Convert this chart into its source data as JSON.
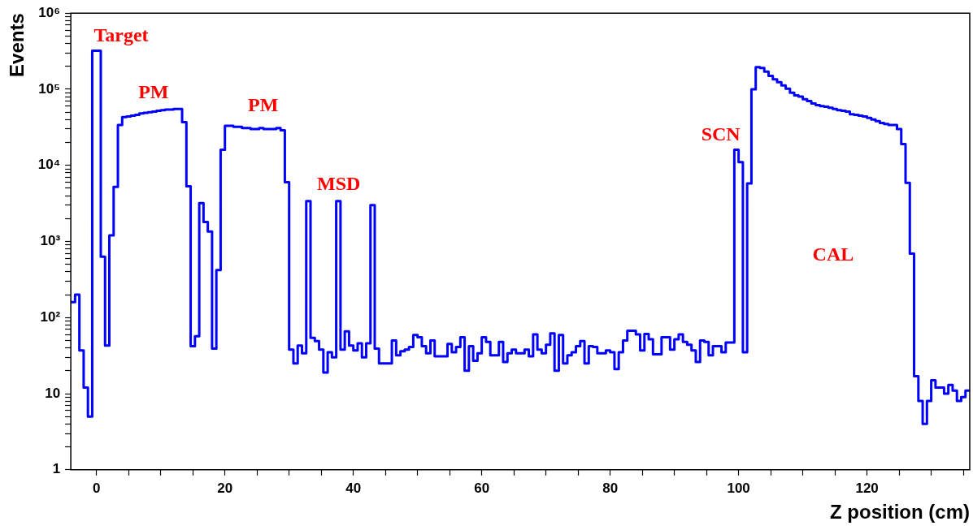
{
  "chart_data": {
    "type": "histogram",
    "xlabel": "Z position (cm)",
    "ylabel": "Events",
    "color": "#0000ff",
    "log": "y",
    "xlim": [
      -4,
      136
    ],
    "ylim": [
      1,
      1000000
    ],
    "xticks": [
      0,
      {
        "value": 5,
        "label": null
      },
      {
        "value": 10,
        "label": null
      },
      {
        "value": 15,
        "label": null
      },
      20,
      {
        "value": 25,
        "label": null
      },
      {
        "value": 30,
        "label": null
      },
      {
        "value": 35,
        "label": null
      },
      40,
      {
        "value": 45,
        "label": null
      },
      {
        "value": 50,
        "label": null
      },
      {
        "value": 55,
        "label": null
      },
      60,
      {
        "value": 65,
        "label": null
      },
      {
        "value": 70,
        "label": null
      },
      {
        "value": 75,
        "label": null
      },
      80,
      {
        "value": 85,
        "label": null
      },
      {
        "value": 90,
        "label": null
      },
      {
        "value": 95,
        "label": null
      },
      100,
      {
        "value": 105,
        "label": null
      },
      {
        "value": 110,
        "label": null
      },
      {
        "value": 115,
        "label": null
      },
      120,
      {
        "value": 125,
        "label": null
      },
      {
        "value": 130,
        "label": null
      },
      {
        "value": 135,
        "label": null
      }
    ],
    "yticks": [
      1,
      {
        "value": 2,
        "label": null
      },
      {
        "value": 3,
        "label": null
      },
      {
        "value": 4,
        "label": null
      },
      {
        "value": 5,
        "label": null
      },
      {
        "value": 6,
        "label": null
      },
      {
        "value": 7,
        "label": null
      },
      {
        "value": 8,
        "label": null
      },
      {
        "value": 9,
        "label": null
      },
      10,
      {
        "value": 20,
        "label": null
      },
      {
        "value": 30,
        "label": null
      },
      {
        "value": 40,
        "label": null
      },
      {
        "value": 50,
        "label": null
      },
      {
        "value": 60,
        "label": null
      },
      {
        "value": 70,
        "label": null
      },
      {
        "value": 80,
        "label": null
      },
      {
        "value": 90,
        "label": null
      },
      {
        "value": 100,
        "label": "10²"
      },
      {
        "value": 200,
        "label": null
      },
      {
        "value": 300,
        "label": null
      },
      {
        "value": 400,
        "label": null
      },
      {
        "value": 500,
        "label": null
      },
      {
        "value": 600,
        "label": null
      },
      {
        "value": 700,
        "label": null
      },
      {
        "value": 800,
        "label": null
      },
      {
        "value": 900,
        "label": null
      },
      {
        "value": 1000,
        "label": "10³"
      },
      {
        "value": 2000,
        "label": null
      },
      {
        "value": 3000,
        "label": null
      },
      {
        "value": 4000,
        "label": null
      },
      {
        "value": 5000,
        "label": null
      },
      {
        "value": 6000,
        "label": null
      },
      {
        "value": 7000,
        "label": null
      },
      {
        "value": 8000,
        "label": null
      },
      {
        "value": 9000,
        "label": null
      },
      {
        "value": 10000,
        "label": "10⁴"
      },
      {
        "value": 20000,
        "label": null
      },
      {
        "value": 30000,
        "label": null
      },
      {
        "value": 40000,
        "label": null
      },
      {
        "value": 50000,
        "label": null
      },
      {
        "value": 60000,
        "label": null
      },
      {
        "value": 70000,
        "label": null
      },
      {
        "value": 80000,
        "label": null
      },
      {
        "value": 90000,
        "label": null
      },
      {
        "value": 100000,
        "label": "10⁵"
      },
      {
        "value": 200000,
        "label": null
      },
      {
        "value": 300000,
        "label": null
      },
      {
        "value": 400000,
        "label": null
      },
      {
        "value": 500000,
        "label": null
      },
      {
        "value": 600000,
        "label": null
      },
      {
        "value": 700000,
        "label": null
      },
      {
        "value": 800000,
        "label": null
      },
      {
        "value": 900000,
        "label": null
      },
      {
        "value": 1000000,
        "label": "10⁶"
      }
    ],
    "bins": [
      -4,
      -3.333,
      -2.667,
      -2,
      -1.333,
      -0.667,
      0,
      0.667,
      1.333,
      2,
      2.667,
      3.333,
      4,
      4.667,
      5.333,
      6,
      6.667,
      7.333,
      8,
      8.667,
      9.333,
      10,
      10.667,
      11.333,
      12,
      12.667,
      13.333,
      14,
      14.667,
      15.333,
      16,
      16.667,
      17.333,
      18,
      18.667,
      19.333,
      20,
      20.667,
      21.333,
      22,
      22.667,
      23.333,
      24,
      24.667,
      25.333,
      26,
      26.667,
      27.333,
      28,
      28.667,
      29.333,
      30,
      30.667,
      31.333,
      32,
      32.667,
      33.333,
      34,
      34.667,
      35.333,
      36,
      36.667,
      37.333,
      38,
      38.667,
      39.333,
      40,
      40.667,
      41.333,
      42,
      42.667,
      43.333,
      44,
      44.667,
      45.333,
      46,
      46.667,
      47.333,
      48,
      48.667,
      49.333,
      50,
      50.667,
      51.333,
      52,
      52.667,
      53.333,
      54,
      54.667,
      55.333,
      56,
      56.667,
      57.333,
      58,
      58.667,
      59.333,
      60,
      60.667,
      61.333,
      62,
      62.667,
      63.333,
      64,
      64.667,
      65.333,
      66,
      66.667,
      67.333,
      68,
      68.667,
      69.333,
      70,
      70.667,
      71.333,
      72,
      72.667,
      73.333,
      74,
      74.667,
      75.333,
      76,
      76.667,
      77.333,
      78,
      78.667,
      79.333,
      80,
      80.667,
      81.333,
      82,
      82.667,
      83.333,
      84,
      84.667,
      85.333,
      86,
      86.667,
      87.333,
      88,
      88.667,
      89.333,
      90,
      90.667,
      91.333,
      92,
      92.667,
      93.333,
      94,
      94.667,
      95.333,
      96,
      96.667,
      97.333,
      98,
      98.667,
      99.333,
      100,
      100.667,
      101.333,
      102,
      102.667,
      103.333,
      104,
      104.667,
      105.333,
      106,
      106.667,
      107.333,
      108,
      108.667,
      109.333,
      110,
      110.667,
      111.333,
      112,
      112.667,
      113.333,
      114,
      114.667,
      115.333,
      116,
      116.667,
      117.333,
      118,
      118.667,
      119.333,
      120,
      120.667,
      121.333,
      122,
      122.667,
      123.333,
      124,
      124.667,
      125.333,
      126,
      126.667,
      127.333,
      128,
      128.667,
      129.333,
      130,
      130.667,
      131.333,
      132,
      132.667,
      133.333,
      134,
      134.667,
      135.333,
      136
    ],
    "values": [
      160,
      200,
      37,
      12,
      5,
      320000,
      320000,
      630,
      43,
      1200,
      5200,
      34000,
      43000,
      44000,
      45000,
      46000,
      48000,
      49000,
      50000,
      51000,
      52000,
      53000,
      54000,
      54000,
      55000,
      55000,
      37000,
      5300,
      42,
      57,
      3200,
      1800,
      1350,
      39,
      420,
      16000,
      33000,
      33000,
      32000,
      32000,
      31000,
      31000,
      30000,
      30000,
      31000,
      30000,
      30000,
      30000,
      31000,
      29000,
      6000,
      38,
      25,
      43,
      34,
      3400,
      54,
      49,
      38,
      19,
      35,
      30,
      3400,
      38,
      66,
      43,
      37,
      46,
      30,
      46,
      3000,
      39,
      25,
      25,
      25,
      50,
      32,
      36,
      38,
      41,
      59,
      55,
      42,
      34,
      50,
      31,
      31,
      31,
      45,
      35,
      41,
      55,
      20,
      42,
      27,
      34,
      55,
      48,
      32,
      32,
      48,
      26,
      34,
      38,
      34,
      34,
      38,
      31,
      60,
      38,
      34,
      44,
      62,
      20,
      59,
      25,
      32,
      35,
      42,
      49,
      25,
      42,
      41,
      34,
      34,
      37,
      35,
      21,
      35,
      50,
      67,
      67,
      60,
      37,
      61,
      52,
      33,
      33,
      55,
      55,
      38,
      52,
      60,
      48,
      44,
      37,
      26,
      50,
      48,
      32,
      42,
      42,
      35,
      47,
      47,
      16000,
      11000,
      35,
      5800,
      100000,
      195000,
      190000,
      170000,
      150000,
      135000,
      124000,
      112000,
      102000,
      90000,
      83000,
      80000,
      74000,
      70000,
      65000,
      62000,
      60000,
      59000,
      57000,
      55000,
      53000,
      52000,
      51000,
      47000,
      46000,
      45000,
      44000,
      42000,
      40000,
      38000,
      36000,
      35000,
      34000,
      34000,
      30000,
      19000,
      5900,
      690,
      17,
      8,
      4,
      8,
      15,
      12,
      12,
      10,
      13,
      11,
      8,
      9,
      11
    ],
    "annotations": [
      "Target",
      "PM",
      "PM",
      "MSD",
      "SCN",
      "CAL"
    ]
  }
}
